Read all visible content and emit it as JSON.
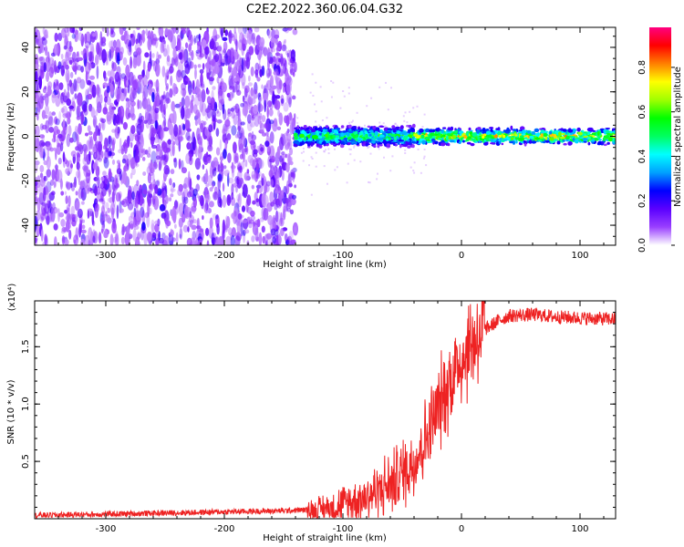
{
  "figure": {
    "title": "C2E2.2022.360.06.04.G32"
  },
  "chart_data": [
    {
      "type": "heatmap",
      "xlabel": "Height of straight line (km)",
      "ylabel": "Frequency (Hz)",
      "xlim": [
        -360,
        130
      ],
      "ylim": [
        -49,
        49
      ],
      "x_ticks": [
        "-300",
        "-200",
        "-100",
        "0",
        "100"
      ],
      "y_ticks": [
        "-40",
        "-20",
        "0",
        "20",
        "40"
      ],
      "colorbar": {
        "label": "Normalized spectral amplitude",
        "range": [
          0,
          0.98
        ],
        "ticks": [
          "0.0",
          "0.2",
          "0.4",
          "0.6",
          "0.8"
        ],
        "colors": [
          "#ffffff",
          "#9a40ff",
          "#5a00ff",
          "#0000ff",
          "#00a0ff",
          "#00ffff",
          "#00ff60",
          "#00ff00",
          "#a0ff00",
          "#ffff00",
          "#ff8000",
          "#ff0000",
          "#ff0080"
        ]
      },
      "regions": [
        {
          "x": [
            -360,
            -140
          ],
          "freq_center": 0,
          "freq_spread": 49,
          "amplitude": 0.1,
          "description_only": false
        },
        {
          "x": [
            -140,
            -40
          ],
          "freq_center": 0,
          "freq_halfwidth": 5,
          "amplitude": 0.55
        },
        {
          "x": [
            -40,
            130
          ],
          "freq_center": 0,
          "freq_halfwidth": 4,
          "amplitude": 0.75
        }
      ]
    },
    {
      "type": "line",
      "xlabel": "Height of straight line (km)",
      "ylabel": "SNR (10 * v/v)",
      "y_multiplier": "(x10⁴)",
      "xlim": [
        -360,
        130
      ],
      "ylim": [
        0,
        1.9
      ],
      "x_ticks": [
        "-300",
        "-200",
        "-100",
        "0",
        "100"
      ],
      "y_ticks": [
        "0.5",
        "1.0",
        "1.5"
      ],
      "line_color": "#ee2222",
      "series": [
        {
          "x": [
            -360,
            -300,
            -250,
            -200,
            -150,
            -120,
            -100,
            -80,
            -60,
            -40,
            -30,
            -20,
            -10,
            0,
            10,
            20,
            30,
            40,
            60,
            80,
            100,
            130
          ],
          "values": [
            0.03,
            0.04,
            0.05,
            0.06,
            0.07,
            0.08,
            0.12,
            0.2,
            0.3,
            0.5,
            0.7,
            0.95,
            1.2,
            1.4,
            1.55,
            1.65,
            1.72,
            1.77,
            1.78,
            1.76,
            1.75,
            1.74
          ]
        }
      ]
    }
  ]
}
